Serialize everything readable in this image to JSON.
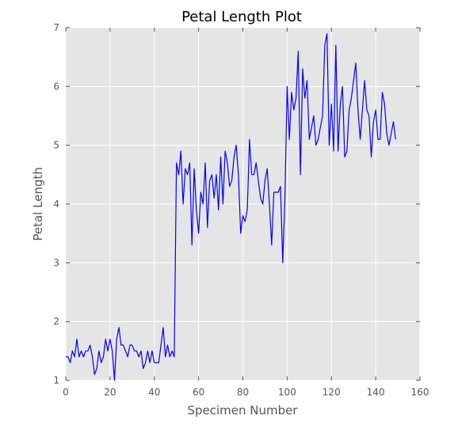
{
  "chart_data": {
    "type": "line",
    "title": "Petal Length Plot",
    "xlabel": "Specimen Number",
    "ylabel": "Petal Length",
    "xlim": [
      0,
      160
    ],
    "ylim": [
      1,
      7
    ],
    "xticks": [
      0,
      20,
      40,
      60,
      80,
      100,
      120,
      140,
      160
    ],
    "yticks": [
      1,
      2,
      3,
      4,
      5,
      6,
      7
    ],
    "grid": true,
    "series_color": "#0000ff",
    "plot_background": "#e5e5e5",
    "series": [
      {
        "values": [
          1.4,
          1.4,
          1.3,
          1.5,
          1.4,
          1.7,
          1.4,
          1.5,
          1.4,
          1.5,
          1.5,
          1.6,
          1.4,
          1.1,
          1.2,
          1.5,
          1.3,
          1.4,
          1.7,
          1.5,
          1.7,
          1.5,
          1.0,
          1.7,
          1.9,
          1.6,
          1.6,
          1.5,
          1.4,
          1.6,
          1.6,
          1.5,
          1.5,
          1.4,
          1.5,
          1.2,
          1.3,
          1.5,
          1.3,
          1.5,
          1.3,
          1.3,
          1.3,
          1.6,
          1.9,
          1.4,
          1.6,
          1.4,
          1.5,
          1.4,
          4.7,
          4.5,
          4.9,
          4.0,
          4.6,
          4.5,
          4.7,
          3.3,
          4.6,
          3.9,
          3.5,
          4.2,
          4.0,
          4.7,
          3.6,
          4.4,
          4.5,
          4.1,
          4.5,
          3.9,
          4.8,
          4.0,
          4.9,
          4.7,
          4.3,
          4.4,
          4.8,
          5.0,
          4.5,
          3.5,
          3.8,
          3.7,
          3.9,
          5.1,
          4.5,
          4.5,
          4.7,
          4.4,
          4.1,
          4.0,
          4.4,
          4.6,
          4.0,
          3.3,
          4.2,
          4.2,
          4.2,
          4.3,
          3.0,
          4.1,
          6.0,
          5.1,
          5.9,
          5.6,
          5.8,
          6.6,
          4.5,
          6.3,
          5.8,
          6.1,
          5.1,
          5.3,
          5.5,
          5.0,
          5.1,
          5.3,
          5.5,
          6.7,
          6.9,
          5.0,
          5.7,
          4.9,
          6.7,
          4.9,
          5.7,
          6.0,
          4.8,
          4.9,
          5.6,
          5.8,
          6.1,
          6.4,
          5.6,
          5.1,
          5.6,
          6.1,
          5.6,
          5.5,
          4.8,
          5.4,
          5.6,
          5.1,
          5.1,
          5.9,
          5.7,
          5.2,
          5.0,
          5.2,
          5.4,
          5.1
        ]
      }
    ]
  }
}
